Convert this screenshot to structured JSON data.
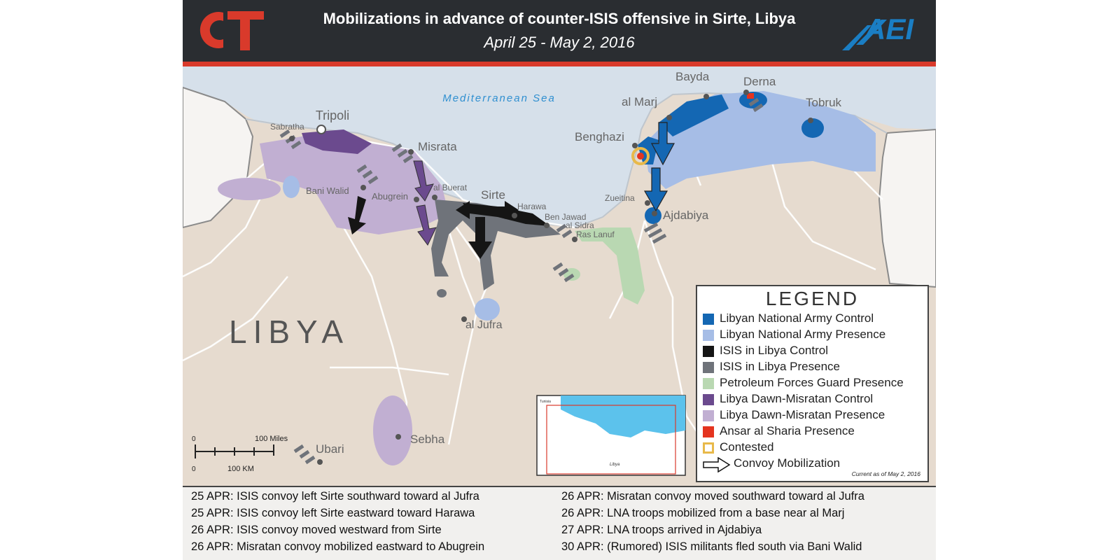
{
  "header": {
    "logo_left": "CT",
    "logo_right": "AEI",
    "title": "Mobilizations in advance of counter-ISIS offensive in Sirte, Libya",
    "subtitle": "April 25 - May 2, 2016"
  },
  "map": {
    "sea_label": "Mediterranean Sea",
    "country_label": "LIBYA",
    "cities": {
      "tripoli": "Tripoli",
      "sabratha": "Sabratha",
      "misrata": "Misrata",
      "bani_walid": "Bani Walid",
      "abugrein": "Abugrein",
      "al_buerat": "al Buerat",
      "sirte": "Sirte",
      "harawa": "Harawa",
      "ben_jawad": "Ben Jawad",
      "al_sidra": "al Sidra",
      "ras_lanuf": "Ras Lanuf",
      "al_jufra": "al Jufra",
      "sebha": "Sebha",
      "ubari": "Ubari",
      "benghazi": "Benghazi",
      "al_marj": "al Marj",
      "bayda": "Bayda",
      "derna": "Derna",
      "tobruk": "Tobruk",
      "zueitina": "Zueitina",
      "ajdabiya": "Ajdabiya"
    },
    "scale": {
      "zero_top": "0",
      "miles_label": "100 Miles",
      "zero_bottom": "0",
      "km_label": "100 KM"
    },
    "inset": {
      "country": "Libya",
      "neighbor": "Tunisia"
    }
  },
  "legend": {
    "title": "LEGEND",
    "items": [
      {
        "label": "Libyan National Army Control",
        "color": "#1467b3"
      },
      {
        "label": "Libyan National Army Presence",
        "color": "#a6bde6"
      },
      {
        "label": "ISIS in Libya Control",
        "color": "#151515"
      },
      {
        "label": "ISIS in Libya Presence",
        "color": "#6f737a"
      },
      {
        "label": "Petroleum Forces Guard Presence",
        "color": "#b9d8b2"
      },
      {
        "label": "Libya Dawn-Misratan Control",
        "color": "#6b4a8e"
      },
      {
        "label": "Libya Dawn-Misratan Presence",
        "color": "#c1afd2"
      },
      {
        "label": "Ansar al Sharia Presence",
        "color": "#e4341f"
      },
      {
        "label": "Contested",
        "color": "#e8b94a"
      },
      {
        "label": "Convoy Mobilization",
        "color": "#ffffff"
      }
    ],
    "note": "Current as of May 2, 2016"
  },
  "timeline": {
    "left": [
      "25 APR: ISIS convoy left Sirte southward toward al Jufra",
      "25 APR: ISIS convoy left Sirte eastward toward Harawa",
      "26 APR: ISIS convoy moved westward from Sirte",
      "26 APR: Misratan convoy mobilized eastward to Abugrein"
    ],
    "right": [
      "26 APR: Misratan convoy moved southward toward al Jufra",
      "26 APR: LNA troops mobilized from a base near al Marj",
      "27 APR: LNA troops arrived in Ajdabiya",
      "30 APR: (Rumored) ISIS militants fled south via Bani Walid"
    ]
  },
  "colors": {
    "header_bg": "#2a2d31",
    "accent_red": "#d93a2b",
    "aei_blue": "#1a7ec4",
    "land": "#e6dbcf",
    "sea": "#d6e0ea"
  }
}
